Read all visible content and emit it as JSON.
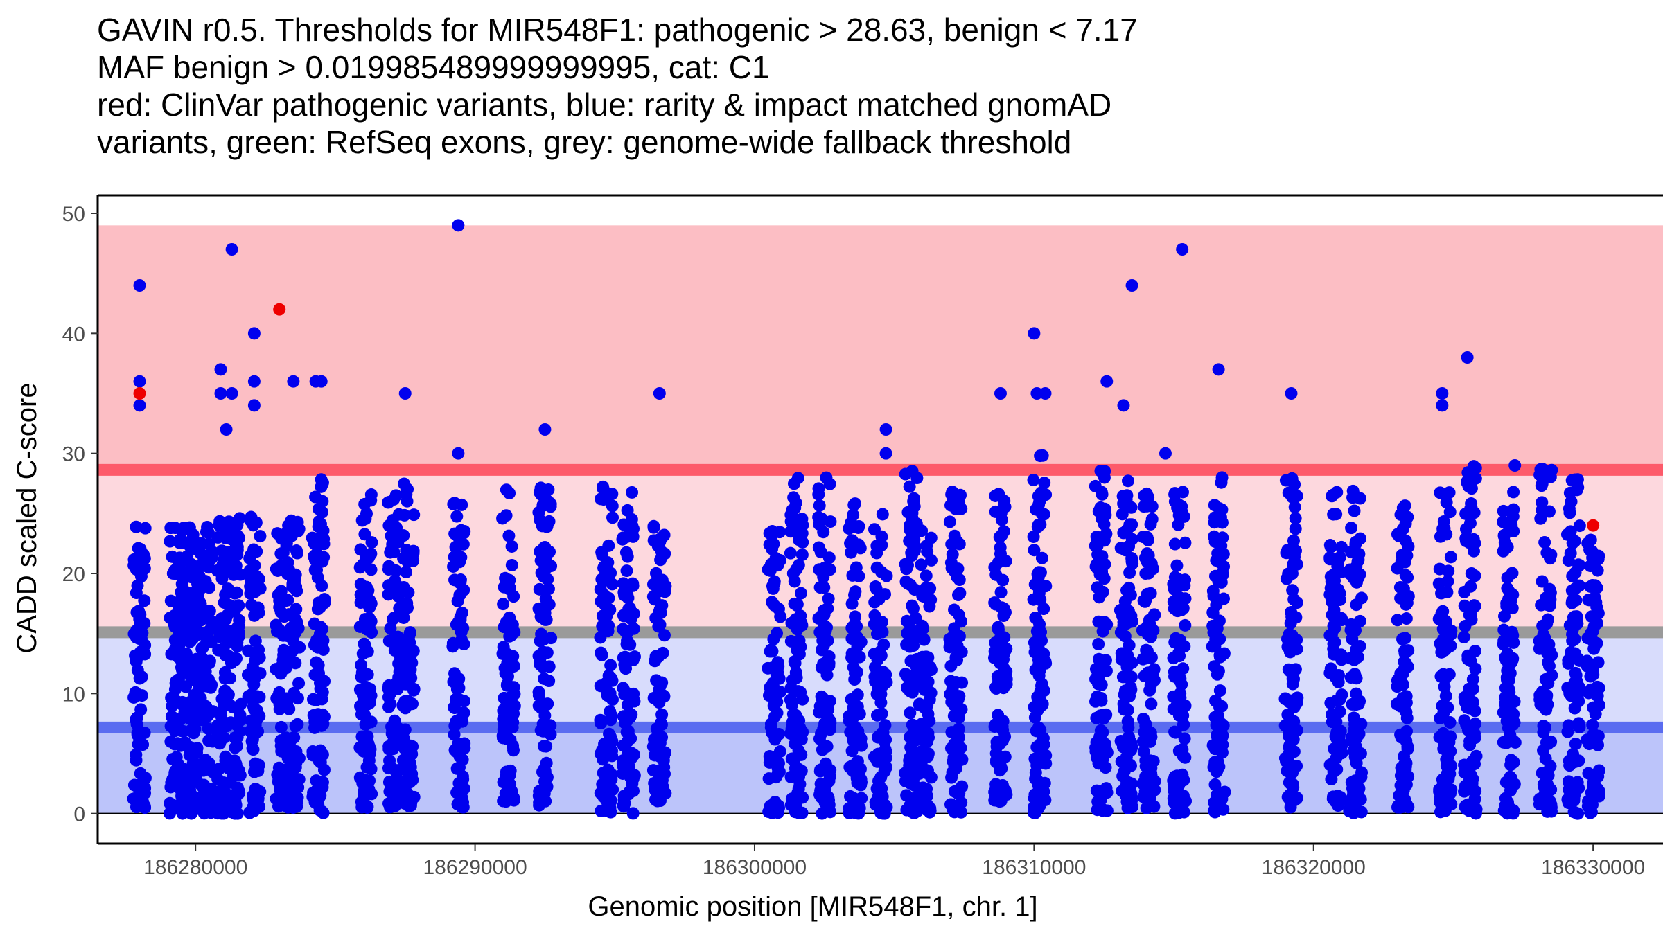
{
  "title_lines": [
    "GAVIN r0.5. Thresholds for MIR548F1: pathogenic > 28.63, benign < 7.17",
    "MAF benign > 0.019985489999999995, cat: C1",
    "red: ClinVar pathogenic variants, blue: rarity & impact matched gnomAD",
    "variants, green: RefSeq exons, grey: genome-wide fallback threshold"
  ],
  "chart_data": {
    "type": "scatter",
    "title": "GAVIN r0.5. Thresholds for MIR548F1: pathogenic > 28.63, benign < 7.17",
    "xlabel": "Genomic position [MIR548F1, chr. 1]",
    "ylabel": "CADD scaled C-score",
    "xlim": [
      186276500,
      186332500
    ],
    "ylim": [
      -2.5,
      51.5
    ],
    "x_ticks": [
      186280000,
      186290000,
      186300000,
      186310000,
      186320000,
      186330000
    ],
    "x_tick_labels": [
      "186280000",
      "186290000",
      "186300000",
      "186310000",
      "186320000",
      "186330000"
    ],
    "y_ticks": [
      0,
      10,
      20,
      30,
      40,
      50
    ],
    "y_tick_labels": [
      "0",
      "10",
      "20",
      "30",
      "40",
      "50"
    ],
    "thresholds": {
      "pathogenic": 28.63,
      "benign": 7.17,
      "genome_wide_fallback": 15.1,
      "pathogenic_band_max": 49,
      "maf_benign": 0.019985489999999995,
      "category": "C1"
    },
    "bands": [
      {
        "name": "pathogenic-zone",
        "from": 28.63,
        "to": 49,
        "color": "#fcbec4"
      },
      {
        "name": "upper-intermediate-zone",
        "from": 15.1,
        "to": 28.63,
        "color": "#fdd8de"
      },
      {
        "name": "lower-intermediate-zone",
        "from": 7.17,
        "to": 15.1,
        "color": "#d8dcfc"
      },
      {
        "name": "benign-zone",
        "from": 0,
        "to": 7.17,
        "color": "#bcc4fa"
      }
    ],
    "threshold_lines": [
      {
        "name": "pathogenic-threshold",
        "y": 28.63,
        "color": "#fd5a6a"
      },
      {
        "name": "fallback-threshold",
        "y": 15.1,
        "color": "#9a9a9a"
      },
      {
        "name": "benign-threshold",
        "y": 7.17,
        "color": "#5a6cf0"
      }
    ],
    "series": [
      {
        "name": "ClinVar pathogenic variants",
        "color": "#ee0000",
        "points": [
          {
            "x": 186278000,
            "y": 35
          },
          {
            "x": 186283000,
            "y": 42
          },
          {
            "x": 186330000,
            "y": 24
          }
        ]
      },
      {
        "name": "gnomAD outlier variants",
        "color": "#0000ee",
        "points": [
          {
            "x": 186278000,
            "y": 44
          },
          {
            "x": 186278000,
            "y": 36
          },
          {
            "x": 186278000,
            "y": 34
          },
          {
            "x": 186281300,
            "y": 47
          },
          {
            "x": 186280900,
            "y": 37
          },
          {
            "x": 186280900,
            "y": 35
          },
          {
            "x": 186281100,
            "y": 32
          },
          {
            "x": 186281300,
            "y": 35
          },
          {
            "x": 186282100,
            "y": 40
          },
          {
            "x": 186282100,
            "y": 36
          },
          {
            "x": 186282100,
            "y": 34
          },
          {
            "x": 186283500,
            "y": 36
          },
          {
            "x": 186284300,
            "y": 36
          },
          {
            "x": 186284500,
            "y": 36
          },
          {
            "x": 186287500,
            "y": 35
          },
          {
            "x": 186289400,
            "y": 49
          },
          {
            "x": 186289400,
            "y": 30
          },
          {
            "x": 186292500,
            "y": 32
          },
          {
            "x": 186296600,
            "y": 35
          },
          {
            "x": 186304700,
            "y": 32
          },
          {
            "x": 186304700,
            "y": 30
          },
          {
            "x": 186308800,
            "y": 35
          },
          {
            "x": 186310000,
            "y": 40
          },
          {
            "x": 186310100,
            "y": 35
          },
          {
            "x": 186310400,
            "y": 35
          },
          {
            "x": 186312600,
            "y": 36
          },
          {
            "x": 186313200,
            "y": 34
          },
          {
            "x": 186313500,
            "y": 44
          },
          {
            "x": 186314700,
            "y": 30
          },
          {
            "x": 186315300,
            "y": 47
          },
          {
            "x": 186316600,
            "y": 37
          },
          {
            "x": 186319200,
            "y": 35
          },
          {
            "x": 186324600,
            "y": 35
          },
          {
            "x": 186324600,
            "y": 34
          },
          {
            "x": 186325500,
            "y": 38
          },
          {
            "x": 186327200,
            "y": 29
          }
        ]
      }
    ],
    "dense_columns": [
      {
        "x": 186278000,
        "y_min": 0.5,
        "y_max": 24
      },
      {
        "x": 186279300,
        "y_min": 0,
        "y_max": 24
      },
      {
        "x": 186279700,
        "y_min": 0,
        "y_max": 24
      },
      {
        "x": 186280000,
        "y_min": 0,
        "y_max": 24
      },
      {
        "x": 186280400,
        "y_min": 0,
        "y_max": 24
      },
      {
        "x": 186281000,
        "y_min": 0,
        "y_max": 25
      },
      {
        "x": 186281400,
        "y_min": 0,
        "y_max": 26
      },
      {
        "x": 186282100,
        "y_min": 0,
        "y_max": 25
      },
      {
        "x": 186283100,
        "y_min": 0.5,
        "y_max": 24
      },
      {
        "x": 186283500,
        "y_min": 0.5,
        "y_max": 25
      },
      {
        "x": 186284400,
        "y_min": 0,
        "y_max": 28
      },
      {
        "x": 186286100,
        "y_min": 0.5,
        "y_max": 27
      },
      {
        "x": 186287100,
        "y_min": 0.5,
        "y_max": 27
      },
      {
        "x": 186287600,
        "y_min": 0.5,
        "y_max": 28
      },
      {
        "x": 186289400,
        "y_min": 0.5,
        "y_max": 26
      },
      {
        "x": 186291200,
        "y_min": 1,
        "y_max": 27
      },
      {
        "x": 186292500,
        "y_min": 0.5,
        "y_max": 28
      },
      {
        "x": 186294700,
        "y_min": 0,
        "y_max": 28
      },
      {
        "x": 186295500,
        "y_min": 0,
        "y_max": 27
      },
      {
        "x": 186296600,
        "y_min": 1,
        "y_max": 25
      },
      {
        "x": 186300700,
        "y_min": 0,
        "y_max": 24
      },
      {
        "x": 186301500,
        "y_min": 0,
        "y_max": 28
      },
      {
        "x": 186302500,
        "y_min": 0,
        "y_max": 28
      },
      {
        "x": 186303600,
        "y_min": 0,
        "y_max": 26
      },
      {
        "x": 186304500,
        "y_min": 0,
        "y_max": 25
      },
      {
        "x": 186305600,
        "y_min": 0,
        "y_max": 29
      },
      {
        "x": 186306100,
        "y_min": 0,
        "y_max": 24
      },
      {
        "x": 186307200,
        "y_min": 0,
        "y_max": 27
      },
      {
        "x": 186308800,
        "y_min": 1,
        "y_max": 28
      },
      {
        "x": 186310200,
        "y_min": 0,
        "y_max": 30
      },
      {
        "x": 186312400,
        "y_min": 0,
        "y_max": 29
      },
      {
        "x": 186313300,
        "y_min": 0,
        "y_max": 28
      },
      {
        "x": 186314100,
        "y_min": 0,
        "y_max": 27
      },
      {
        "x": 186315200,
        "y_min": 0,
        "y_max": 29
      },
      {
        "x": 186316600,
        "y_min": 0,
        "y_max": 28
      },
      {
        "x": 186319200,
        "y_min": 0.5,
        "y_max": 28
      },
      {
        "x": 186320800,
        "y_min": 0.5,
        "y_max": 27
      },
      {
        "x": 186321500,
        "y_min": 0,
        "y_max": 28
      },
      {
        "x": 186323200,
        "y_min": 0.5,
        "y_max": 27
      },
      {
        "x": 186324700,
        "y_min": 0,
        "y_max": 27
      },
      {
        "x": 186325600,
        "y_min": 0,
        "y_max": 29
      },
      {
        "x": 186327000,
        "y_min": 0,
        "y_max": 28
      },
      {
        "x": 186328300,
        "y_min": 0,
        "y_max": 29
      },
      {
        "x": 186329300,
        "y_min": 0,
        "y_max": 28
      },
      {
        "x": 186330000,
        "y_min": 0,
        "y_max": 23
      }
    ]
  }
}
